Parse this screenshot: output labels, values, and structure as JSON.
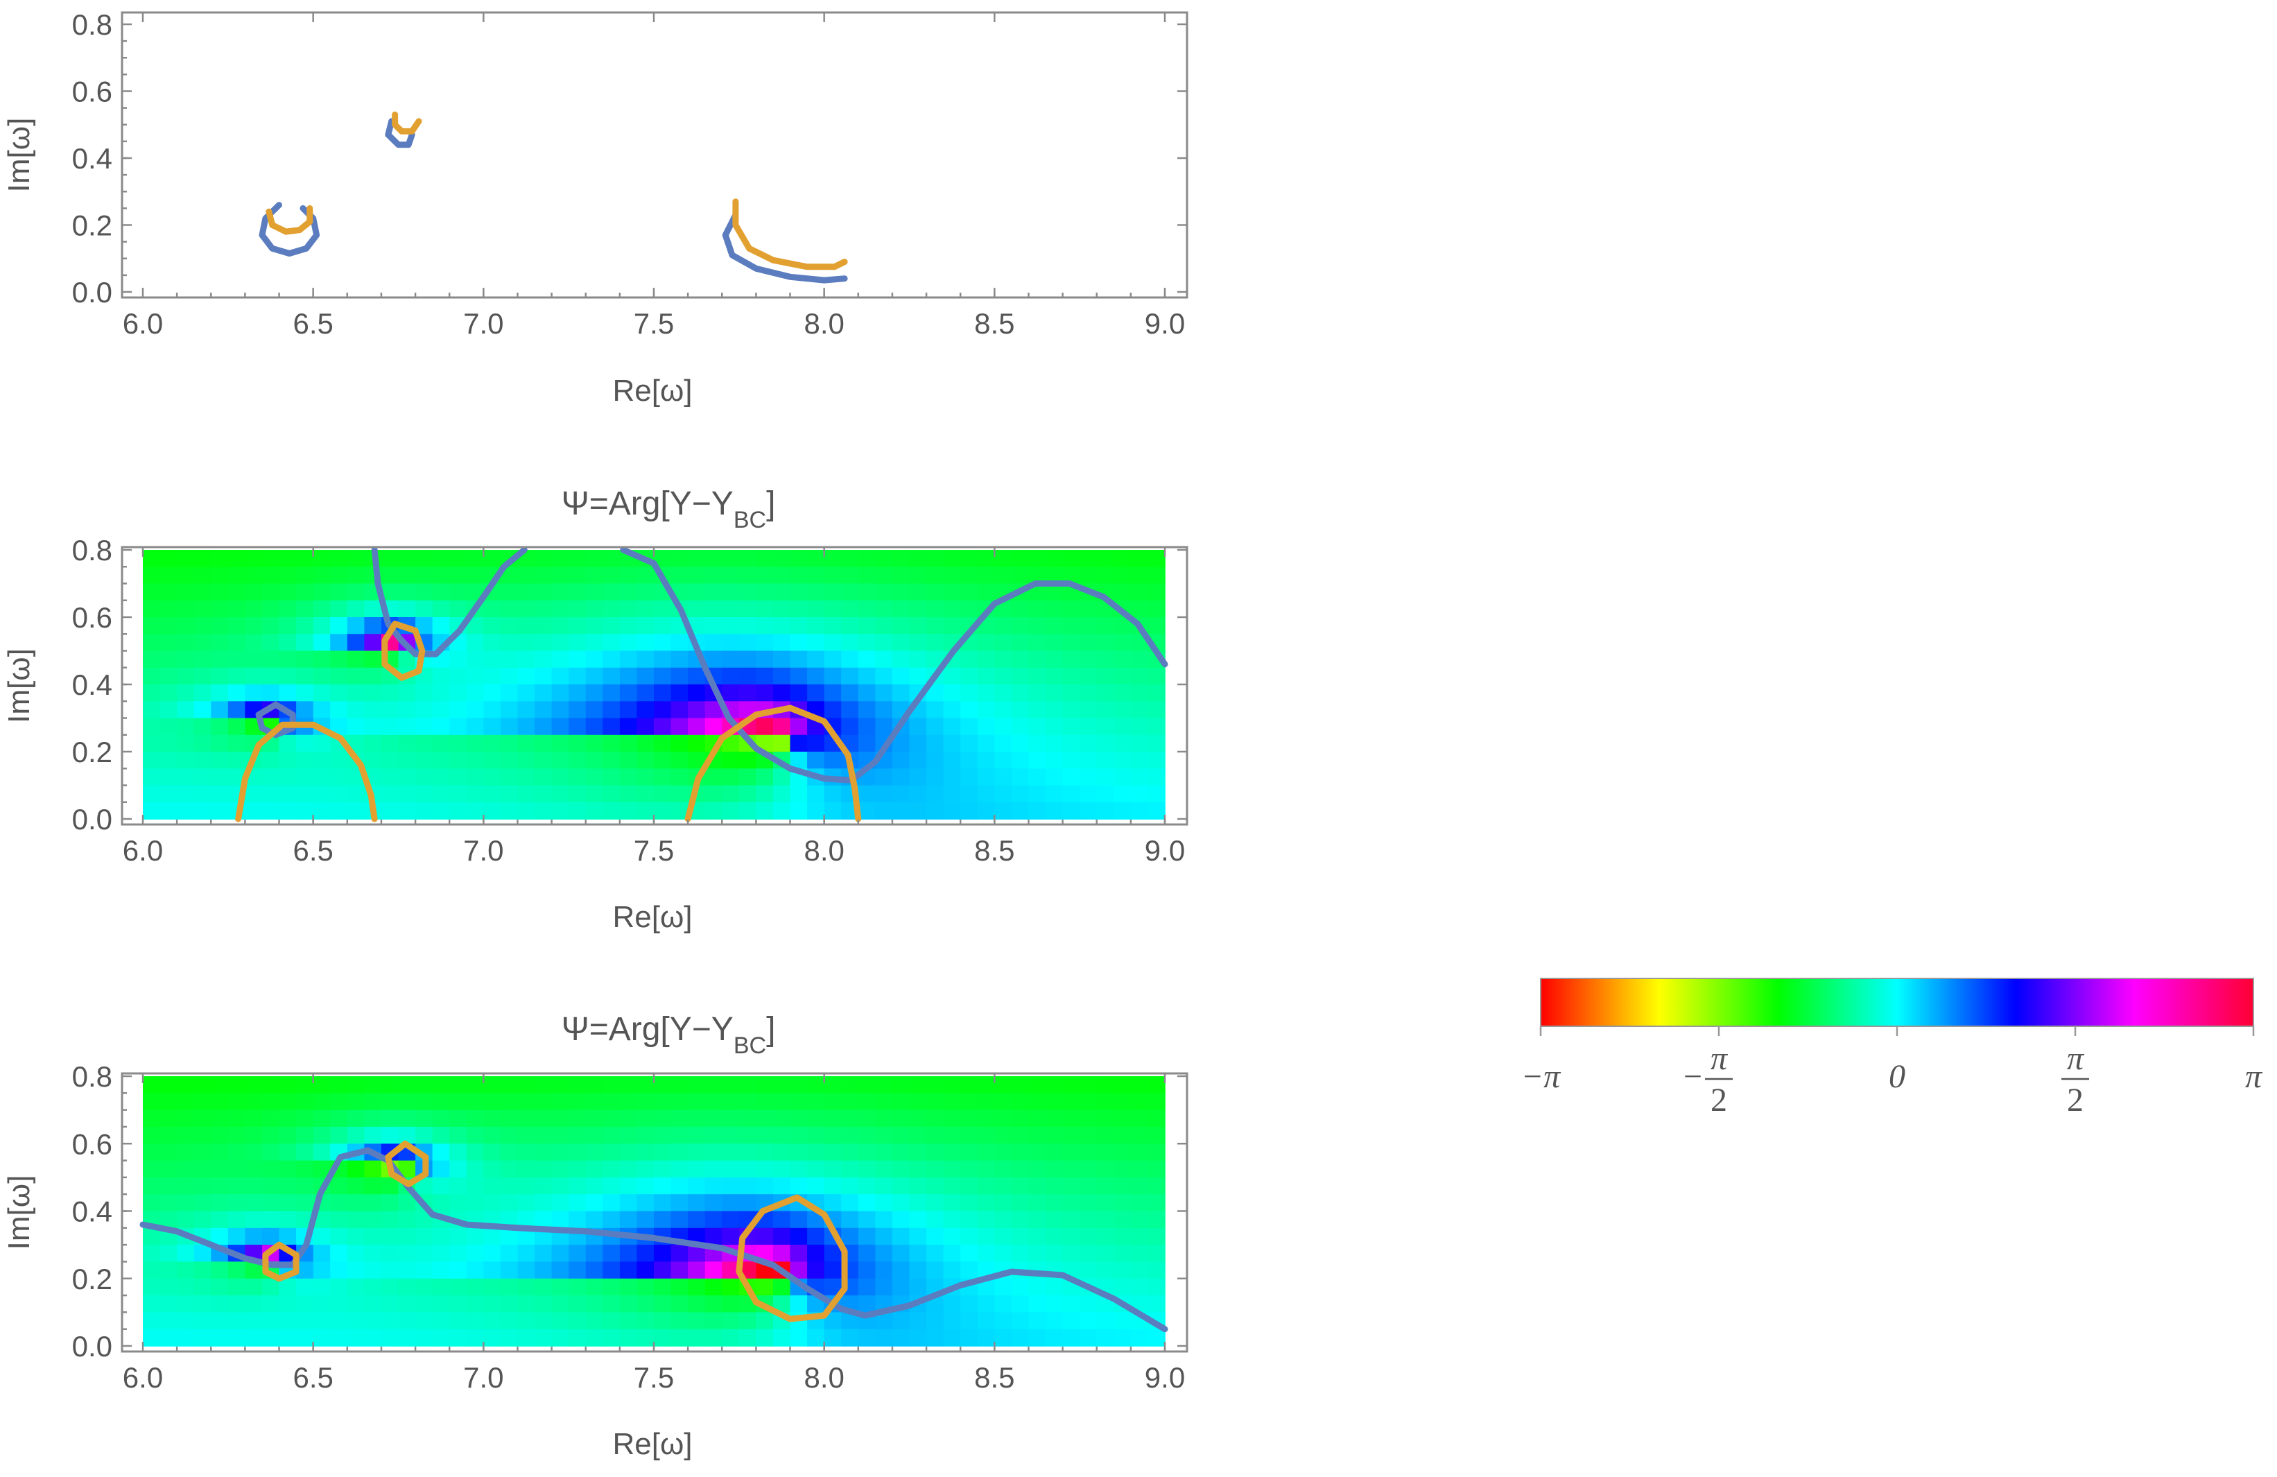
{
  "chart_data": [
    {
      "type": "line",
      "title": "",
      "xlabel": "Re[ω]",
      "ylabel": "Im[ω]",
      "xlim": [
        6.0,
        9.0
      ],
      "ylim": [
        0.0,
        0.8
      ],
      "xticks": [
        "6.0",
        "6.5",
        "7.0",
        "7.5",
        "8.0",
        "8.5",
        "9.0"
      ],
      "yticks": [
        "0.0",
        "0.2",
        "0.4",
        "0.6",
        "0.8"
      ],
      "background": "none",
      "series": [
        {
          "color": "#5b7dbf",
          "curves": [
            [
              [
                6.4,
                0.26
              ],
              [
                6.36,
                0.22
              ],
              [
                6.35,
                0.17
              ],
              [
                6.38,
                0.13
              ],
              [
                6.43,
                0.115
              ],
              [
                6.48,
                0.13
              ],
              [
                6.51,
                0.17
              ],
              [
                6.5,
                0.22
              ],
              [
                6.47,
                0.25
              ]
            ],
            [
              [
                6.73,
                0.51
              ],
              [
                6.72,
                0.47
              ],
              [
                6.75,
                0.44
              ],
              [
                6.78,
                0.44
              ],
              [
                6.79,
                0.47
              ]
            ],
            [
              [
                7.74,
                0.23
              ],
              [
                7.71,
                0.17
              ],
              [
                7.73,
                0.11
              ],
              [
                7.8,
                0.07
              ],
              [
                7.9,
                0.045
              ],
              [
                8.0,
                0.035
              ],
              [
                8.06,
                0.04
              ]
            ]
          ]
        },
        {
          "color": "#e2a030",
          "curves": [
            [
              [
                6.37,
                0.24
              ],
              [
                6.38,
                0.2
              ],
              [
                6.42,
                0.18
              ],
              [
                6.46,
                0.185
              ],
              [
                6.49,
                0.21
              ],
              [
                6.49,
                0.25
              ]
            ],
            [
              [
                6.74,
                0.53
              ],
              [
                6.74,
                0.5
              ],
              [
                6.76,
                0.48
              ],
              [
                6.79,
                0.48
              ],
              [
                6.81,
                0.51
              ]
            ],
            [
              [
                7.74,
                0.27
              ],
              [
                7.74,
                0.2
              ],
              [
                7.78,
                0.13
              ],
              [
                7.85,
                0.095
              ],
              [
                7.95,
                0.075
              ],
              [
                8.03,
                0.075
              ],
              [
                8.06,
                0.09
              ]
            ]
          ]
        }
      ]
    },
    {
      "type": "heatmap",
      "title": "Ψ=Arg[Y−Y",
      "title_sub": "BC",
      "title_end": "]",
      "xlabel": "Re[ω]",
      "ylabel": "Im[ω]",
      "xlim": [
        6.0,
        9.0
      ],
      "ylim": [
        0.0,
        0.8
      ],
      "xticks": [
        "6.0",
        "6.5",
        "7.0",
        "7.5",
        "8.0",
        "8.5",
        "9.0"
      ],
      "yticks": [
        "0.0",
        "0.2",
        "0.4",
        "0.6",
        "0.8"
      ],
      "background": "phase",
      "phase_points": [
        {
          "x": 6.4,
          "y": 0.285,
          "sign": 1,
          "r": 0.06
        },
        {
          "x": 6.77,
          "y": 0.52,
          "sign": 1,
          "r": 0.07
        },
        {
          "x": 7.9,
          "y": 0.23,
          "sign": 1,
          "r": 0.25
        }
      ],
      "series": [
        {
          "color": "#5b7dbf",
          "curves": [
            [
              [
                6.68,
                0.8
              ],
              [
                6.69,
                0.7
              ],
              [
                6.72,
                0.58
              ],
              [
                6.76,
                0.53
              ],
              [
                6.8,
                0.49
              ],
              [
                6.86,
                0.49
              ],
              [
                6.93,
                0.56
              ],
              [
                7.0,
                0.66
              ],
              [
                7.06,
                0.75
              ],
              [
                7.12,
                0.8
              ]
            ],
            [
              [
                7.41,
                0.8
              ],
              [
                7.5,
                0.76
              ],
              [
                7.58,
                0.62
              ],
              [
                7.65,
                0.45
              ],
              [
                7.72,
                0.3
              ],
              [
                7.8,
                0.21
              ],
              [
                7.9,
                0.15
              ],
              [
                8.0,
                0.12
              ],
              [
                8.08,
                0.115
              ],
              [
                8.15,
                0.17
              ],
              [
                8.25,
                0.32
              ],
              [
                8.38,
                0.5
              ],
              [
                8.5,
                0.64
              ],
              [
                8.62,
                0.7
              ],
              [
                8.72,
                0.7
              ],
              [
                8.82,
                0.66
              ],
              [
                8.92,
                0.58
              ],
              [
                9.0,
                0.46
              ]
            ],
            [
              [
                6.39,
                0.34
              ],
              [
                6.34,
                0.31
              ],
              [
                6.35,
                0.27
              ],
              [
                6.39,
                0.25
              ],
              [
                6.44,
                0.27
              ],
              [
                6.44,
                0.31
              ],
              [
                6.39,
                0.34
              ]
            ]
          ]
        },
        {
          "color": "#e2a030",
          "curves": [
            [
              [
                6.28,
                0.0
              ],
              [
                6.3,
                0.12
              ],
              [
                6.34,
                0.22
              ],
              [
                6.41,
                0.28
              ],
              [
                6.5,
                0.28
              ],
              [
                6.58,
                0.24
              ],
              [
                6.64,
                0.16
              ],
              [
                6.67,
                0.07
              ],
              [
                6.68,
                0.0
              ]
            ],
            [
              [
                6.74,
                0.58
              ],
              [
                6.71,
                0.53
              ],
              [
                6.71,
                0.46
              ],
              [
                6.76,
                0.42
              ],
              [
                6.81,
                0.44
              ],
              [
                6.82,
                0.5
              ],
              [
                6.8,
                0.56
              ],
              [
                6.74,
                0.58
              ]
            ],
            [
              [
                7.6,
                0.0
              ],
              [
                7.63,
                0.12
              ],
              [
                7.7,
                0.24
              ],
              [
                7.8,
                0.31
              ],
              [
                7.9,
                0.33
              ],
              [
                8.0,
                0.29
              ],
              [
                8.07,
                0.19
              ],
              [
                8.09,
                0.09
              ],
              [
                8.1,
                0.0
              ]
            ]
          ]
        }
      ]
    },
    {
      "type": "heatmap",
      "title": "Ψ=Arg[Y−Y",
      "title_sub": "BC",
      "title_end": "]",
      "xlabel": "Re[ω]",
      "ylabel": "Im[ω]",
      "xlim": [
        6.0,
        9.0
      ],
      "ylim": [
        0.0,
        0.8
      ],
      "xticks": [
        "6.0",
        "6.5",
        "7.0",
        "7.5",
        "8.0",
        "8.5",
        "9.0"
      ],
      "yticks": [
        "0.0",
        "0.2",
        "0.4",
        "0.6",
        "0.8"
      ],
      "background": "phase",
      "phase_points": [
        {
          "x": 6.4,
          "y": 0.25,
          "sign": 1,
          "r": 0.06
        },
        {
          "x": 6.78,
          "y": 0.53,
          "sign": 1,
          "r": 0.07
        },
        {
          "x": 7.9,
          "y": 0.2,
          "sign": 1,
          "r": 0.22
        }
      ],
      "series": [
        {
          "color": "#5b7dbf",
          "curves": [
            [
              [
                6.0,
                0.36
              ],
              [
                6.1,
                0.34
              ],
              [
                6.2,
                0.3
              ],
              [
                6.3,
                0.26
              ],
              [
                6.38,
                0.24
              ],
              [
                6.44,
                0.24
              ],
              [
                6.48,
                0.3
              ],
              [
                6.52,
                0.45
              ],
              [
                6.58,
                0.56
              ],
              [
                6.66,
                0.58
              ],
              [
                6.72,
                0.55
              ],
              [
                6.78,
                0.47
              ],
              [
                6.85,
                0.39
              ],
              [
                6.95,
                0.36
              ],
              [
                7.1,
                0.35
              ],
              [
                7.3,
                0.34
              ],
              [
                7.5,
                0.32
              ],
              [
                7.7,
                0.29
              ],
              [
                7.85,
                0.24
              ],
              [
                7.95,
                0.17
              ],
              [
                8.05,
                0.11
              ],
              [
                8.12,
                0.09
              ],
              [
                8.25,
                0.12
              ],
              [
                8.4,
                0.18
              ],
              [
                8.55,
                0.22
              ],
              [
                8.7,
                0.21
              ],
              [
                8.85,
                0.14
              ],
              [
                9.0,
                0.05
              ]
            ]
          ]
        },
        {
          "color": "#e2a030",
          "curves": [
            [
              [
                6.4,
                0.3
              ],
              [
                6.36,
                0.27
              ],
              [
                6.36,
                0.22
              ],
              [
                6.4,
                0.2
              ],
              [
                6.45,
                0.22
              ],
              [
                6.45,
                0.27
              ],
              [
                6.4,
                0.3
              ]
            ],
            [
              [
                6.77,
                0.6
              ],
              [
                6.72,
                0.56
              ],
              [
                6.73,
                0.51
              ],
              [
                6.78,
                0.48
              ],
              [
                6.83,
                0.51
              ],
              [
                6.83,
                0.56
              ],
              [
                6.77,
                0.6
              ]
            ],
            [
              [
                7.82,
                0.4
              ],
              [
                7.76,
                0.32
              ],
              [
                7.75,
                0.22
              ],
              [
                7.8,
                0.13
              ],
              [
                7.9,
                0.08
              ],
              [
                8.0,
                0.09
              ],
              [
                8.06,
                0.17
              ],
              [
                8.06,
                0.28
              ],
              [
                8.0,
                0.39
              ],
              [
                7.92,
                0.44
              ],
              [
                7.82,
                0.4
              ]
            ]
          ]
        }
      ]
    }
  ],
  "legend": {
    "tick_labels": [
      {
        "text": "−π"
      },
      {
        "text": "−",
        "frac": {
          "num": "π",
          "den": "2"
        }
      },
      {
        "text": "0"
      },
      {
        "text": "",
        "frac": {
          "num": "π",
          "den": "2"
        }
      },
      {
        "text": "π"
      }
    ],
    "tick_values": [
      -3.14159,
      -1.5708,
      0,
      1.5708,
      3.14159
    ],
    "range": [
      -3.14159,
      3.14159
    ]
  }
}
